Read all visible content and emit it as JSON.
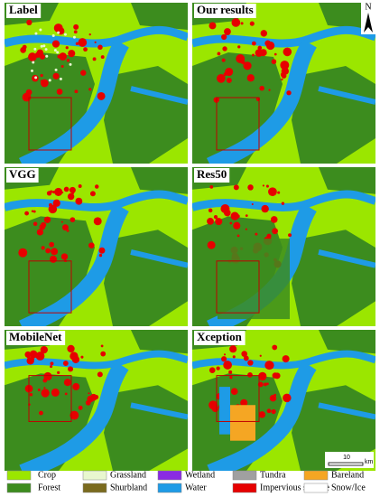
{
  "panels": [
    {
      "title": "Label"
    },
    {
      "title": "Our results"
    },
    {
      "title": "VGG"
    },
    {
      "title": "Res50"
    },
    {
      "title": "MobileNet"
    },
    {
      "title": "Xception"
    }
  ],
  "north": "N",
  "scale_bar": {
    "value": "10",
    "unit": "km"
  },
  "legend": [
    {
      "label": "Crop",
      "color": "#9be600"
    },
    {
      "label": "Forest",
      "color": "#3c8c1e"
    },
    {
      "label": "Grassland",
      "color": "#e8f7cf"
    },
    {
      "label": "Shurbland",
      "color": "#7a6a1e"
    },
    {
      "label": "Wetland",
      "color": "#8a2be2"
    },
    {
      "label": "Water",
      "color": "#1e9be6"
    },
    {
      "label": "Tundra",
      "color": "#a0a0a0"
    },
    {
      "label": "Impervious surface",
      "color": "#e60000"
    },
    {
      "label": "Bareland",
      "color": "#f5a623"
    },
    {
      "label": "Snow/Ice",
      "color": "#ffffff"
    }
  ]
}
